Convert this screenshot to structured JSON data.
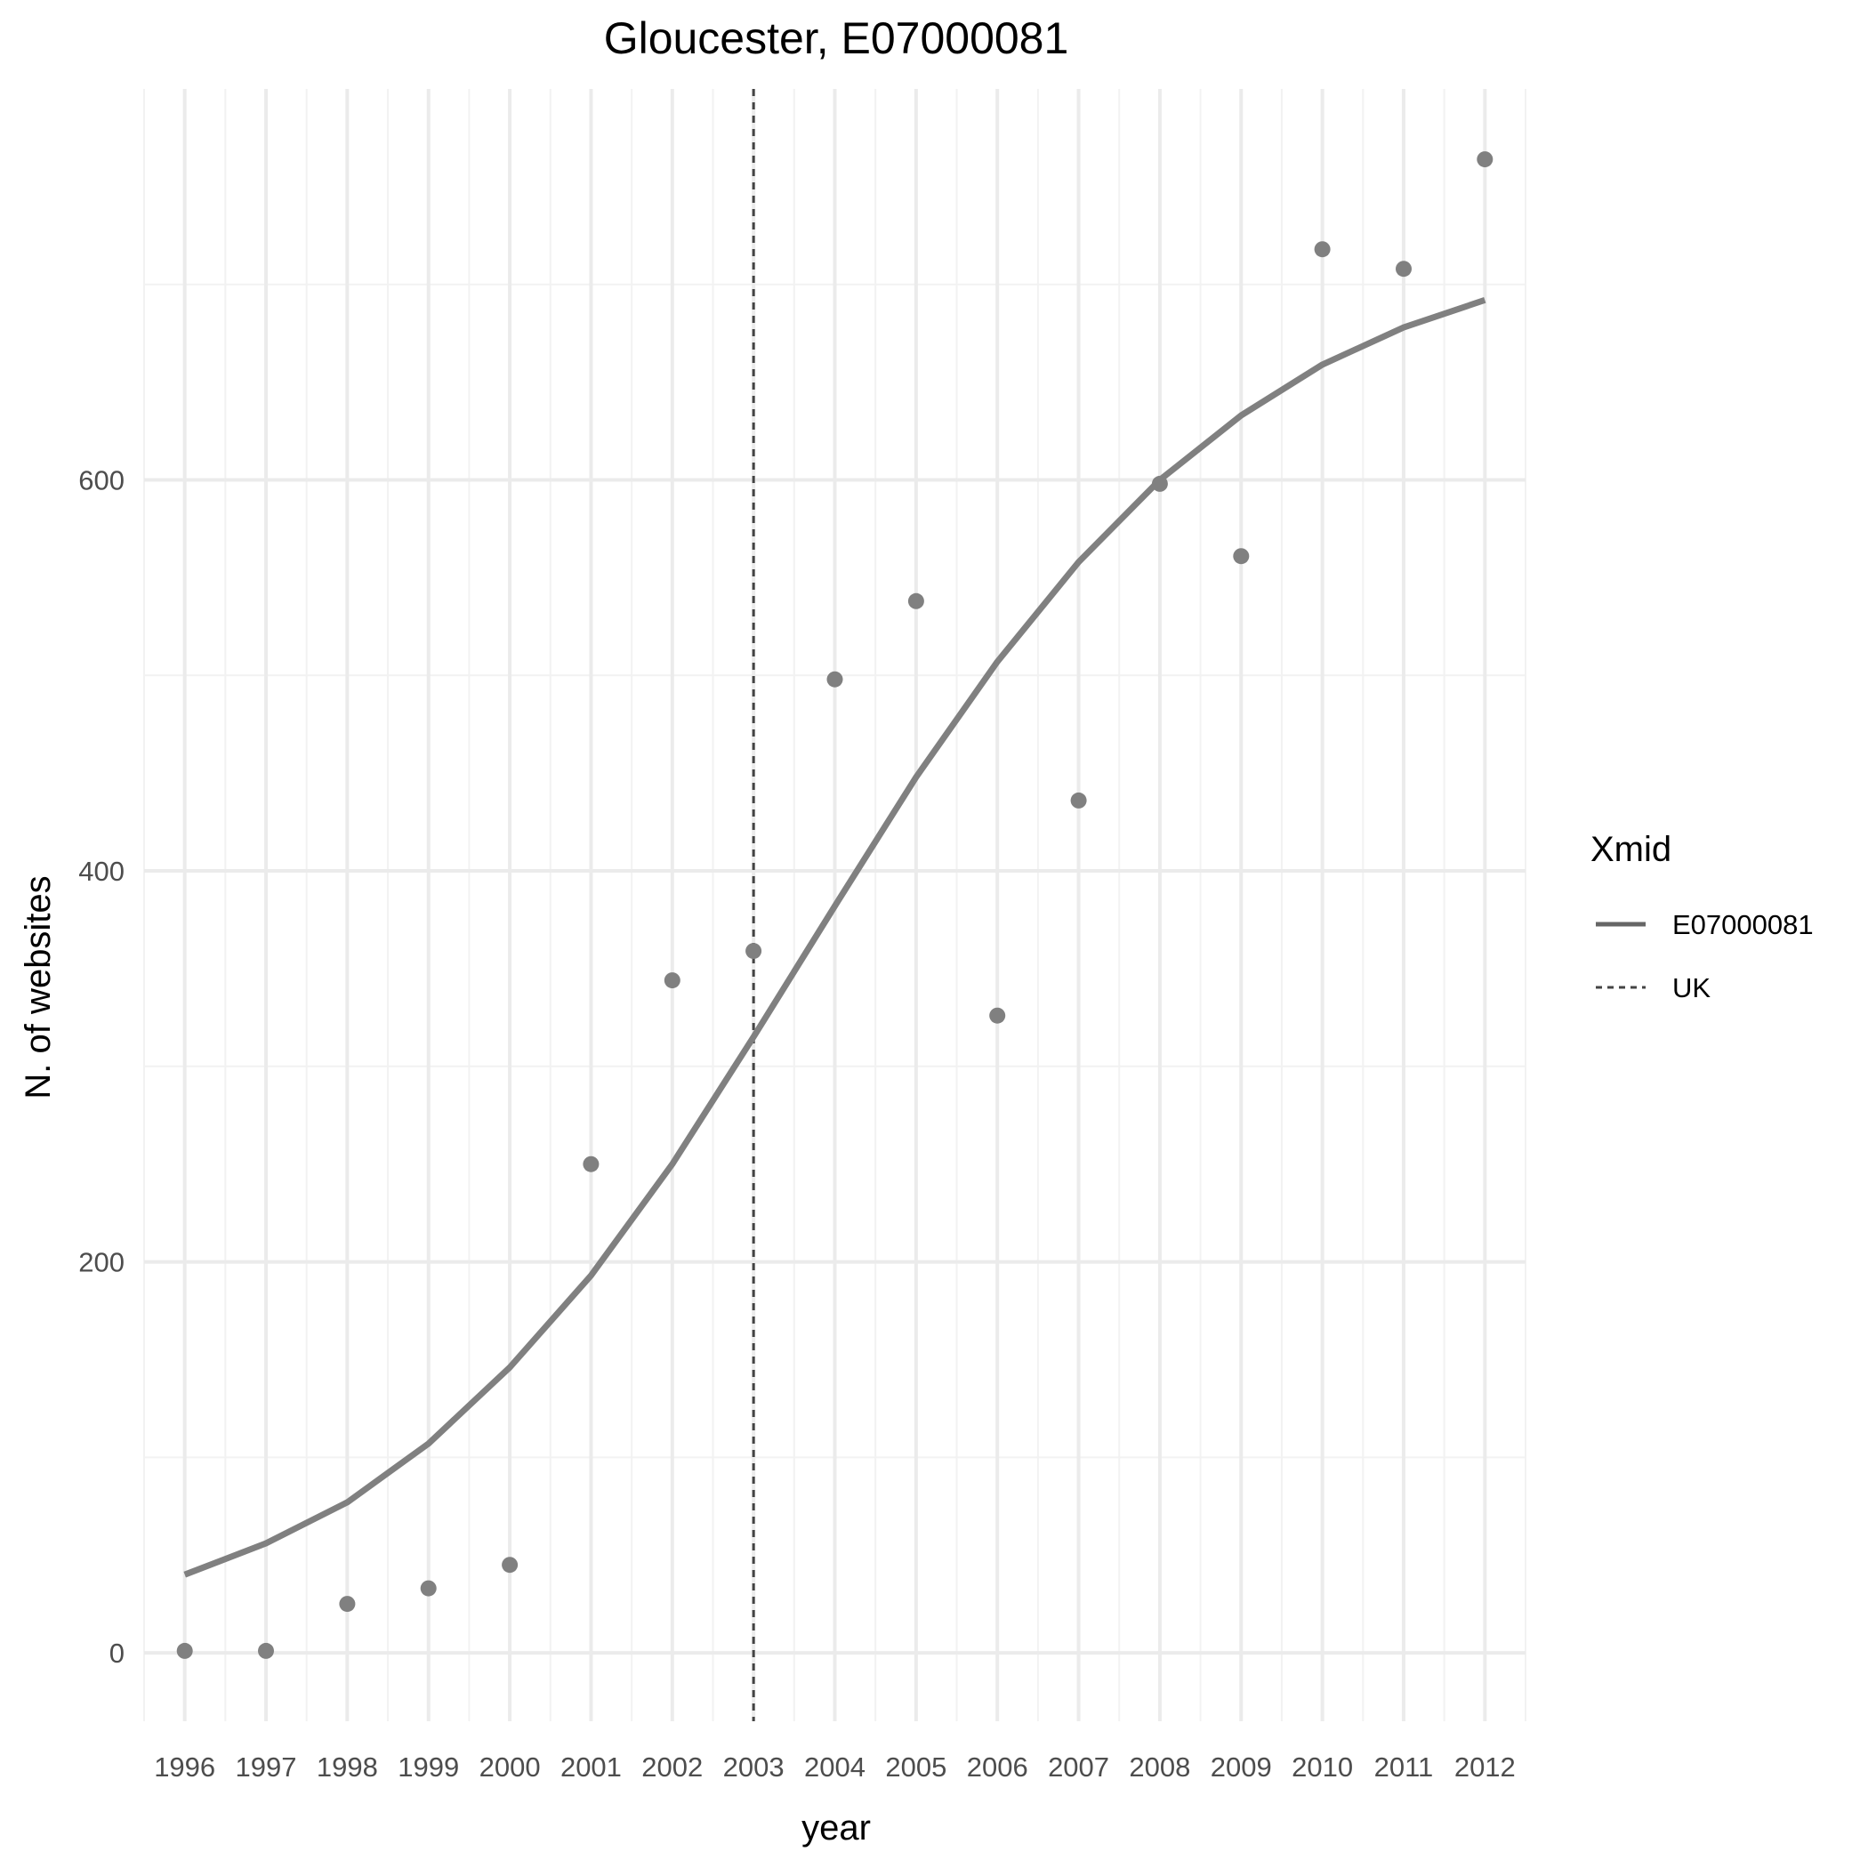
{
  "chart_data": {
    "type": "line",
    "title": "Gloucester, E07000081",
    "xlabel": "year",
    "ylabel": "N. of websites",
    "x": [
      1996,
      1997,
      1998,
      1999,
      2000,
      2001,
      2002,
      2003,
      2004,
      2005,
      2006,
      2007,
      2008,
      2009,
      2010,
      2011,
      2012
    ],
    "x_tick_labels": [
      "1996",
      "1997",
      "1998",
      "1999",
      "2000",
      "2001",
      "2002",
      "2003",
      "2004",
      "2005",
      "2006",
      "2007",
      "2008",
      "2009",
      "2010",
      "2011",
      "2012"
    ],
    "y_ticks": [
      0,
      200,
      400,
      600
    ],
    "y_tick_labels": [
      "0",
      "200",
      "400",
      "600"
    ],
    "xlim": [
      1995.5,
      2012.5
    ],
    "ylim": [
      -35,
      800
    ],
    "grid": true,
    "series": [
      {
        "name": "E07000081",
        "kind": "line",
        "linetype": "solid",
        "color": "#808080",
        "values": [
          40,
          56,
          77,
          107,
          146,
          193,
          250,
          315,
          382,
          448,
          507,
          558,
          600,
          633,
          659,
          678,
          692
        ]
      },
      {
        "name": "",
        "kind": "points",
        "color": "#808080",
        "values": [
          1,
          1,
          25,
          33,
          45,
          250,
          344,
          359,
          498,
          538,
          326,
          436,
          598,
          561,
          718,
          708,
          764
        ]
      },
      {
        "name": "UK",
        "kind": "vline",
        "linetype": "dashed",
        "color": "#555555",
        "x_value": 2003
      }
    ],
    "legend": {
      "title": "Xmid",
      "position": "right",
      "entries": [
        {
          "label": "E07000081",
          "linetype": "solid"
        },
        {
          "label": "UK",
          "linetype": "dashed"
        }
      ]
    }
  }
}
